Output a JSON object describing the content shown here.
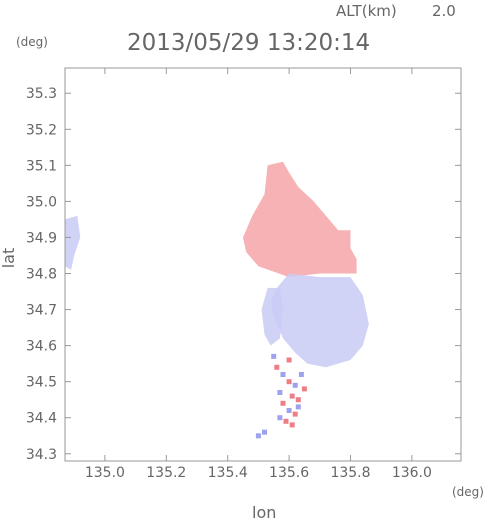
{
  "header": {
    "altitude_label": "ALT(km)",
    "altitude_value": "2.0",
    "timestamp": "2013/05/29 13:20:14"
  },
  "chart_data": {
    "type": "heatmap",
    "title": "2013/05/29 13:20:14",
    "xlabel": "lon",
    "ylabel": "lat",
    "x_unit": "(deg)",
    "y_unit": "(deg)",
    "xlim": [
      134.87,
      136.16
    ],
    "ylim": [
      34.28,
      35.37
    ],
    "x_ticks": [
      135.0,
      135.2,
      135.4,
      135.6,
      135.8,
      136.0
    ],
    "x_tick_labels": [
      "135.0",
      "135.2",
      "135.4",
      "135.6",
      "135.8",
      "136.0"
    ],
    "y_ticks": [
      34.3,
      34.4,
      34.5,
      34.6,
      34.7,
      34.8,
      34.9,
      35.0,
      35.1,
      35.2,
      35.3
    ],
    "y_tick_labels": [
      "34.3",
      "34.4",
      "34.5",
      "34.6",
      "34.7",
      "34.8",
      "34.9",
      "35.0",
      "35.1",
      "35.2",
      "35.3"
    ],
    "grid": false,
    "colors": {
      "positive": "#f4a5a8",
      "negative": "#c9cbf4",
      "axis": "#999999"
    },
    "regions": [
      {
        "id": "north-red-zone",
        "sign": "positive",
        "polygon": [
          [
            135.53,
            35.1
          ],
          [
            135.58,
            35.11
          ],
          [
            135.6,
            35.08
          ],
          [
            135.63,
            35.04
          ],
          [
            135.68,
            35.0
          ],
          [
            135.72,
            34.96
          ],
          [
            135.76,
            34.92
          ],
          [
            135.8,
            34.92
          ],
          [
            135.8,
            34.87
          ],
          [
            135.82,
            34.84
          ],
          [
            135.82,
            34.8
          ],
          [
            135.7,
            34.8
          ],
          [
            135.6,
            34.79
          ],
          [
            135.5,
            34.82
          ],
          [
            135.46,
            34.86
          ],
          [
            135.45,
            34.9
          ],
          [
            135.48,
            34.96
          ],
          [
            135.52,
            35.02
          ]
        ]
      },
      {
        "id": "central-blue-zone",
        "sign": "negative",
        "polygon": [
          [
            135.6,
            34.8
          ],
          [
            135.7,
            34.79
          ],
          [
            135.8,
            34.79
          ],
          [
            135.84,
            34.74
          ],
          [
            135.86,
            34.66
          ],
          [
            135.84,
            34.6
          ],
          [
            135.8,
            34.56
          ],
          [
            135.72,
            34.54
          ],
          [
            135.66,
            34.55
          ],
          [
            135.62,
            34.58
          ],
          [
            135.58,
            34.62
          ],
          [
            135.55,
            34.68
          ],
          [
            135.54,
            34.72
          ],
          [
            135.56,
            34.76
          ]
        ]
      },
      {
        "id": "west-blue-patch",
        "sign": "negative",
        "polygon": [
          [
            135.53,
            34.76
          ],
          [
            135.57,
            34.76
          ],
          [
            135.58,
            34.7
          ],
          [
            135.57,
            34.62
          ],
          [
            135.54,
            34.6
          ],
          [
            135.52,
            34.63
          ],
          [
            135.51,
            34.7
          ]
        ]
      },
      {
        "id": "far-west-blue-strip",
        "sign": "negative",
        "polygon": [
          [
            134.87,
            34.95
          ],
          [
            134.91,
            34.96
          ],
          [
            134.92,
            34.9
          ],
          [
            134.9,
            34.85
          ],
          [
            134.89,
            34.81
          ],
          [
            134.87,
            34.82
          ]
        ]
      }
    ],
    "points": [
      [
        135.56,
        34.54,
        "positive"
      ],
      [
        135.58,
        34.52,
        "negative"
      ],
      [
        135.6,
        34.5,
        "positive"
      ],
      [
        135.62,
        34.49,
        "negative"
      ],
      [
        135.57,
        34.47,
        "negative"
      ],
      [
        135.61,
        34.46,
        "positive"
      ],
      [
        135.58,
        34.44,
        "positive"
      ],
      [
        135.63,
        34.45,
        "positive"
      ],
      [
        135.6,
        34.42,
        "negative"
      ],
      [
        135.62,
        34.41,
        "positive"
      ],
      [
        135.59,
        34.39,
        "positive"
      ],
      [
        135.61,
        34.38,
        "positive"
      ],
      [
        135.64,
        34.52,
        "negative"
      ],
      [
        135.55,
        34.57,
        "negative"
      ],
      [
        135.6,
        34.56,
        "positive"
      ],
      [
        135.57,
        34.4,
        "negative"
      ],
      [
        135.52,
        34.36,
        "negative"
      ],
      [
        135.5,
        34.35,
        "negative"
      ],
      [
        135.65,
        34.48,
        "positive"
      ],
      [
        135.63,
        34.43,
        "negative"
      ]
    ]
  }
}
